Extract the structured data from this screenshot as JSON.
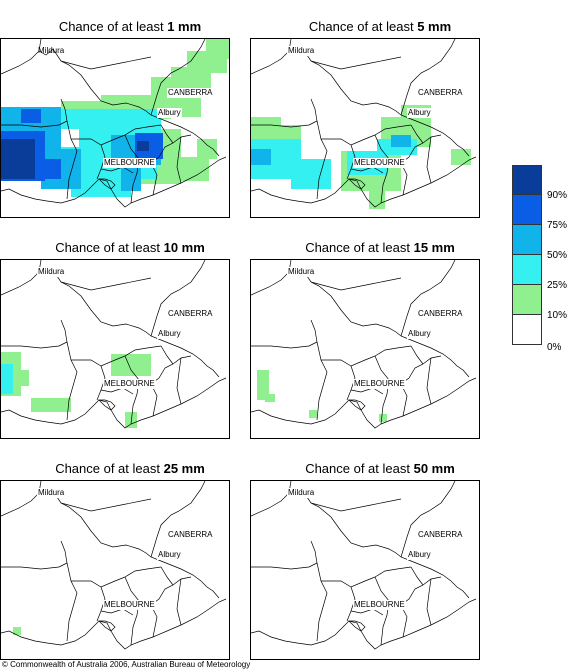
{
  "panels": [
    {
      "prefix": "Chance of at least ",
      "amount": "1 mm"
    },
    {
      "prefix": "Chance of at least ",
      "amount": "5 mm"
    },
    {
      "prefix": "Chance of at least ",
      "amount": "10 mm"
    },
    {
      "prefix": "Chance of at least ",
      "amount": "15 mm"
    },
    {
      "prefix": "Chance of at least ",
      "amount": "25 mm"
    },
    {
      "prefix": "Chance of at least ",
      "amount": "50 mm"
    }
  ],
  "places": {
    "mildura": "Mildura",
    "canberra": "CANBERRA",
    "albury": "Albury",
    "melbourne": "MELBOURNE"
  },
  "legend": {
    "labels": [
      "90%",
      "75%",
      "50%",
      "25%",
      "10%",
      "0%"
    ],
    "colors": [
      "#0a3c9a",
      "#0a5ee6",
      "#10b4ea",
      "#34f0f0",
      "#90f090",
      "#ffffff"
    ]
  },
  "copyright": "© Commonwealth of Australia 2006, Australian Bureau of Meteorology"
}
